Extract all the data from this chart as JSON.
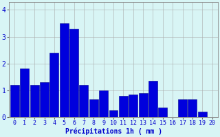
{
  "values": [
    1.2,
    1.8,
    1.2,
    1.3,
    2.4,
    3.5,
    3.3,
    1.2,
    0.65,
    1.0,
    0.25,
    0.8,
    0.85,
    0.9,
    1.35,
    0.35,
    0.0,
    0.65,
    0.65,
    0.2,
    0.0
  ],
  "categories": [
    "0",
    "1",
    "2",
    "3",
    "4",
    "5",
    "6",
    "7",
    "8",
    "9",
    "10",
    "11",
    "12",
    "13",
    "14",
    "15",
    "16",
    "17",
    "18",
    "19",
    "20"
  ],
  "bar_color": "#0000dd",
  "bar_edge_color": "#00008b",
  "background_color": "#d8f5f5",
  "grid_color": "#aaaaaa",
  "xlabel": "Précipitations 1h ( mm )",
  "ylim": [
    0,
    4.3
  ],
  "yticks": [
    0,
    1,
    2,
    3,
    4
  ],
  "xlabel_fontsize": 7,
  "tick_fontsize": 6,
  "text_color": "#0000cc"
}
